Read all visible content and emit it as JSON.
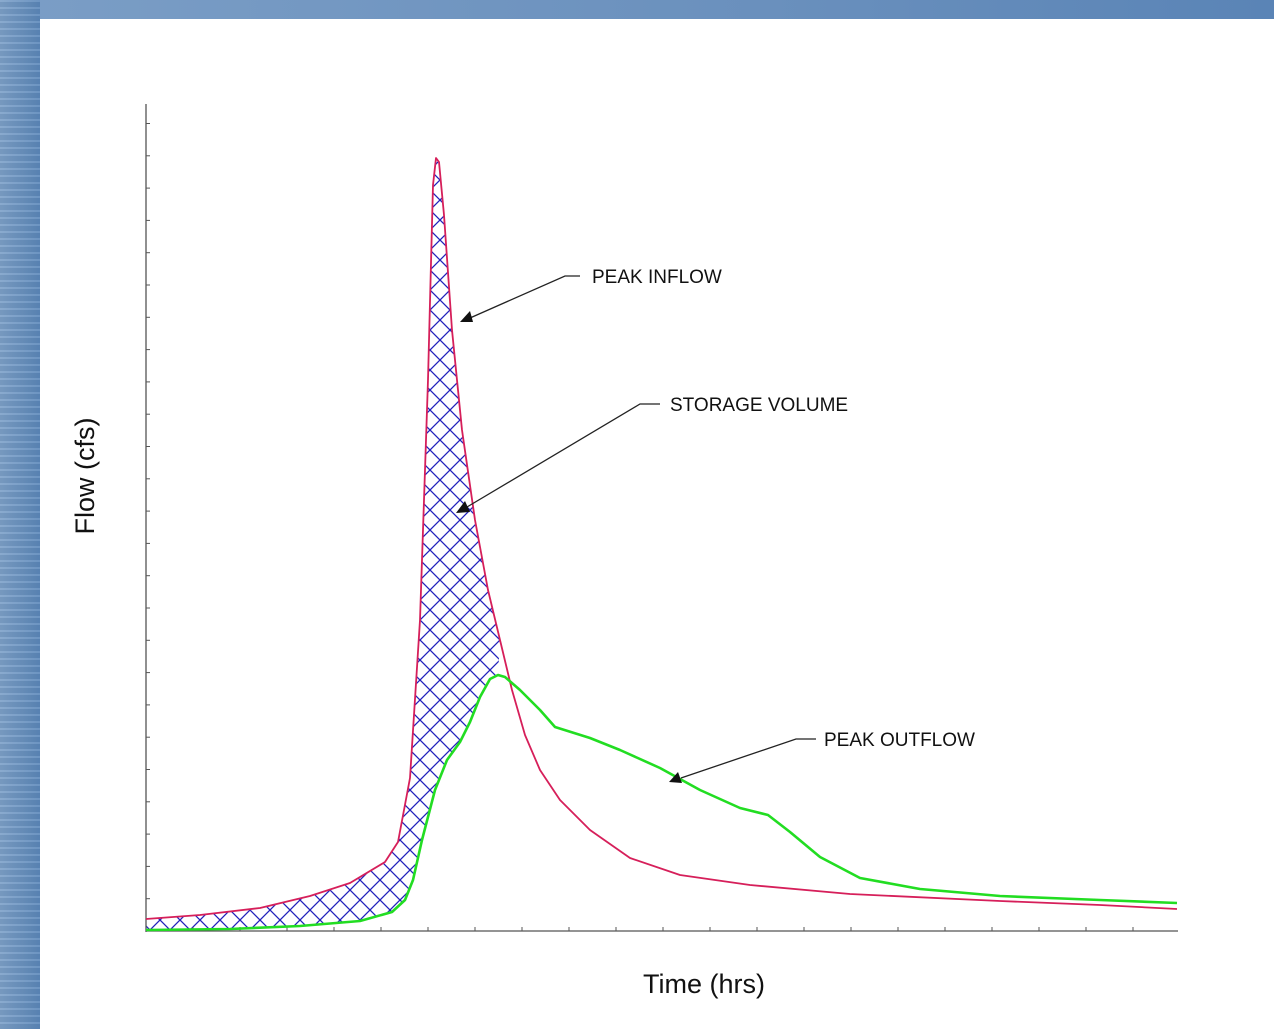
{
  "diagram": {
    "axes": {
      "xlabel": "Time (hrs)",
      "ylabel": "Flow (cfs)"
    },
    "annotations": [
      {
        "id": "peak_inflow",
        "text": "PEAK INFLOW"
      },
      {
        "id": "storage_volume",
        "text": "STORAGE VOLUME"
      },
      {
        "id": "peak_outflow",
        "text": "PEAK OUTFLOW"
      }
    ],
    "series": [
      {
        "id": "inflow",
        "color": "#d61f5a"
      },
      {
        "id": "outflow",
        "color": "#22dd22"
      }
    ],
    "fill": {
      "id": "storage_volume_area",
      "color": "#2222bb",
      "pattern": "crosshatch"
    }
  }
}
